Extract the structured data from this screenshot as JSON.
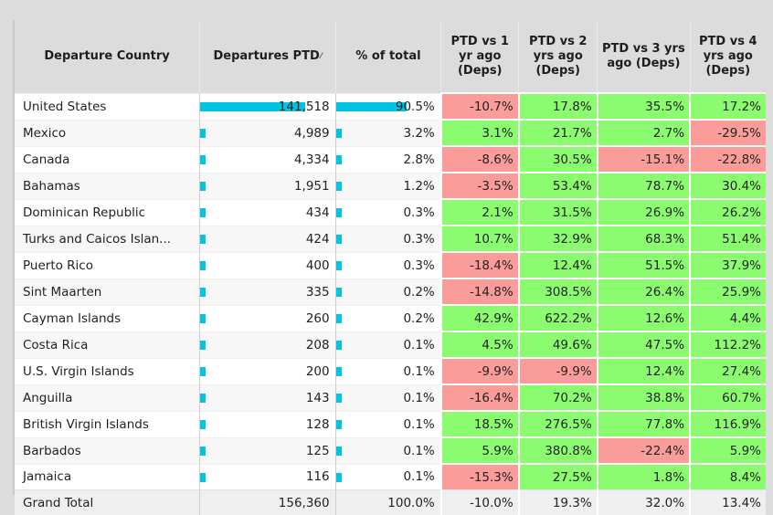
{
  "table": {
    "headers": {
      "country": "Departure Country",
      "departures": "Departures PTD",
      "pct_total": "% of total",
      "vs1": "PTD vs 1 yr ago (Deps)",
      "vs2": "PTD vs 2 yrs ago (Deps)",
      "vs3": "PTD vs 3 yrs ago (Deps)",
      "vs4": "PTD vs 4 yrs ago (Deps)"
    },
    "sort_indicator": "sort-descending-icon",
    "colors": {
      "positive": "#8bfb6f",
      "negative": "#fa9d9a",
      "bar": "#00c4e0"
    },
    "rows": [
      {
        "country": "United States",
        "departures": "141,518",
        "departures_value": 141518,
        "pct": "90.5%",
        "pct_value": 90.5,
        "vs1": "-10.7%",
        "vs2": "17.8%",
        "vs3": "35.5%",
        "vs4": "17.2%"
      },
      {
        "country": "Mexico",
        "departures": "4,989",
        "departures_value": 4989,
        "pct": "3.2%",
        "pct_value": 3.2,
        "vs1": "3.1%",
        "vs2": "21.7%",
        "vs3": "2.7%",
        "vs4": "-29.5%"
      },
      {
        "country": "Canada",
        "departures": "4,334",
        "departures_value": 4334,
        "pct": "2.8%",
        "pct_value": 2.8,
        "vs1": "-8.6%",
        "vs2": "30.5%",
        "vs3": "-15.1%",
        "vs4": "-22.8%"
      },
      {
        "country": "Bahamas",
        "departures": "1,951",
        "departures_value": 1951,
        "pct": "1.2%",
        "pct_value": 1.2,
        "vs1": "-3.5%",
        "vs2": "53.4%",
        "vs3": "78.7%",
        "vs4": "30.4%"
      },
      {
        "country": "Dominican Republic",
        "departures": "434",
        "departures_value": 434,
        "pct": "0.3%",
        "pct_value": 0.3,
        "vs1": "2.1%",
        "vs2": "31.5%",
        "vs3": "26.9%",
        "vs4": "26.2%"
      },
      {
        "country": "Turks and Caicos Islan...",
        "departures": "424",
        "departures_value": 424,
        "pct": "0.3%",
        "pct_value": 0.3,
        "vs1": "10.7%",
        "vs2": "32.9%",
        "vs3": "68.3%",
        "vs4": "51.4%"
      },
      {
        "country": "Puerto Rico",
        "departures": "400",
        "departures_value": 400,
        "pct": "0.3%",
        "pct_value": 0.3,
        "vs1": "-18.4%",
        "vs2": "12.4%",
        "vs3": "51.5%",
        "vs4": "37.9%"
      },
      {
        "country": "Sint Maarten",
        "departures": "335",
        "departures_value": 335,
        "pct": "0.2%",
        "pct_value": 0.2,
        "vs1": "-14.8%",
        "vs2": "308.5%",
        "vs3": "26.4%",
        "vs4": "25.9%"
      },
      {
        "country": "Cayman Islands",
        "departures": "260",
        "departures_value": 260,
        "pct": "0.2%",
        "pct_value": 0.2,
        "vs1": "42.9%",
        "vs2": "622.2%",
        "vs3": "12.6%",
        "vs4": "4.4%"
      },
      {
        "country": "Costa Rica",
        "departures": "208",
        "departures_value": 208,
        "pct": "0.1%",
        "pct_value": 0.1,
        "vs1": "4.5%",
        "vs2": "49.6%",
        "vs3": "47.5%",
        "vs4": "112.2%"
      },
      {
        "country": "U.S. Virgin Islands",
        "departures": "200",
        "departures_value": 200,
        "pct": "0.1%",
        "pct_value": 0.1,
        "vs1": "-9.9%",
        "vs2": "-9.9%",
        "vs3": "12.4%",
        "vs4": "27.4%"
      },
      {
        "country": "Anguilla",
        "departures": "143",
        "departures_value": 143,
        "pct": "0.1%",
        "pct_value": 0.1,
        "vs1": "-16.4%",
        "vs2": "70.2%",
        "vs3": "38.8%",
        "vs4": "60.7%"
      },
      {
        "country": "British Virgin Islands",
        "departures": "128",
        "departures_value": 128,
        "pct": "0.1%",
        "pct_value": 0.1,
        "vs1": "18.5%",
        "vs2": "276.5%",
        "vs3": "77.8%",
        "vs4": "116.9%"
      },
      {
        "country": "Barbados",
        "departures": "125",
        "departures_value": 125,
        "pct": "0.1%",
        "pct_value": 0.1,
        "vs1": "5.9%",
        "vs2": "380.8%",
        "vs3": "-22.4%",
        "vs4": "5.9%"
      },
      {
        "country": "Jamaica",
        "departures": "116",
        "departures_value": 116,
        "pct": "0.1%",
        "pct_value": 0.1,
        "vs1": "-15.3%",
        "vs2": "27.5%",
        "vs3": "1.8%",
        "vs4": "8.4%"
      }
    ],
    "total": {
      "country": "Grand Total",
      "departures": "156,360",
      "pct": "100.0%",
      "vs1": "-10.0%",
      "vs2": "19.3%",
      "vs3": "32.0%",
      "vs4": "13.4%"
    }
  }
}
